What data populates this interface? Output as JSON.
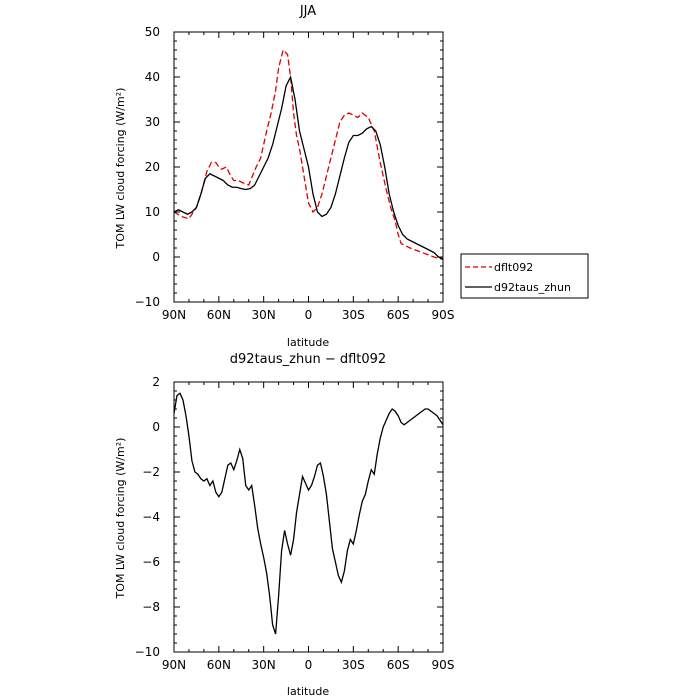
{
  "chart_data": [
    {
      "type": "line",
      "title": "JJA",
      "xlabel": "latitude",
      "ylabel": "TOM LW cloud forcing (W/m²)",
      "xlim": [
        -90,
        90
      ],
      "ylim": [
        -10,
        50
      ],
      "x_ticks": [
        -90,
        -60,
        -30,
        0,
        30,
        60,
        90
      ],
      "x_tick_labels": [
        "90N",
        "60N",
        "30N",
        "0",
        "30S",
        "60S",
        "90S"
      ],
      "y_ticks": [
        -10,
        0,
        10,
        20,
        30,
        40,
        50
      ],
      "y_tick_labels": [
        "−10",
        "0",
        "10",
        "20",
        "30",
        "40",
        "50"
      ],
      "legend": {
        "placement": "right",
        "entries": [
          "dflt092",
          "d92taus_zhun"
        ]
      },
      "series": [
        {
          "name": "dflt092",
          "color": "#dd0000",
          "dash": "dashed",
          "x": [
            -90,
            -85,
            -80,
            -75,
            -72,
            -68,
            -65,
            -62,
            -60,
            -58,
            -55,
            -52,
            -50,
            -47,
            -44,
            -40,
            -35,
            -32,
            -28,
            -25,
            -22,
            -20,
            -17,
            -14,
            -12,
            -10,
            -8,
            -6,
            -4,
            -2,
            0,
            3,
            6,
            9,
            12,
            15,
            18,
            21,
            24,
            27,
            30,
            33,
            36,
            40,
            44,
            48,
            52,
            55,
            58,
            60,
            62,
            65,
            68,
            72,
            76,
            80,
            84,
            87,
            90
          ],
          "y": [
            10,
            9,
            8.5,
            11,
            14,
            19,
            21,
            21,
            20,
            19.5,
            20,
            18,
            17,
            17,
            16.5,
            16,
            20,
            22,
            28,
            32,
            37,
            42,
            46,
            45,
            40,
            32,
            27,
            24,
            20,
            16,
            12,
            10,
            11,
            14,
            18,
            22,
            26,
            30,
            31.5,
            32,
            31.5,
            31,
            32,
            31,
            28,
            21,
            15,
            11,
            8,
            5,
            3,
            2.5,
            2,
            1.5,
            1,
            0.5,
            0,
            -0.3,
            -0.5
          ]
        },
        {
          "name": "d92taus_zhun",
          "color": "#000000",
          "dash": "solid",
          "x": [
            -90,
            -87,
            -84,
            -81,
            -78,
            -75,
            -72,
            -69,
            -66,
            -63,
            -60,
            -57,
            -54,
            -51,
            -48,
            -45,
            -42,
            -39,
            -36,
            -33,
            -30,
            -27,
            -24,
            -21,
            -18,
            -15,
            -12,
            -9,
            -6,
            -3,
            0,
            3,
            6,
            9,
            12,
            15,
            18,
            21,
            24,
            27,
            30,
            33,
            36,
            39,
            42,
            45,
            48,
            51,
            54,
            57,
            60,
            63,
            66,
            69,
            72,
            75,
            78,
            81,
            84,
            87,
            90
          ],
          "y": [
            10,
            10.5,
            10,
            9.5,
            10,
            11,
            14,
            17.5,
            18.5,
            18,
            17.5,
            17,
            16,
            15.5,
            15.5,
            15.2,
            15,
            15.2,
            16,
            18,
            20,
            22,
            25,
            29,
            33,
            38,
            40,
            35,
            28,
            24,
            20,
            14,
            10,
            9,
            9.5,
            11,
            14,
            18,
            22,
            25.5,
            27,
            27,
            27.5,
            28.5,
            29,
            28,
            25,
            20,
            14,
            10,
            7,
            5,
            4,
            3.5,
            3,
            2.5,
            2,
            1.5,
            1,
            0,
            -0.5
          ]
        }
      ]
    },
    {
      "type": "line",
      "title": "d92taus_zhun − dflt092",
      "xlabel": "latitude",
      "ylabel": "TOM LW cloud forcing (W/m²)",
      "xlim": [
        -90,
        90
      ],
      "ylim": [
        -10,
        2
      ],
      "x_ticks": [
        -90,
        -60,
        -30,
        0,
        30,
        60,
        90
      ],
      "x_tick_labels": [
        "90N",
        "60N",
        "30N",
        "0",
        "30S",
        "60S",
        "90S"
      ],
      "y_ticks": [
        -10,
        -8,
        -6,
        -4,
        -2,
        0,
        2
      ],
      "y_tick_labels": [
        "−10",
        "−8",
        "−6",
        "−4",
        "−2",
        "0",
        "2"
      ],
      "series": [
        {
          "name": "",
          "color": "#000000",
          "dash": "solid",
          "x": [
            -90,
            -88,
            -86,
            -84,
            -82,
            -80,
            -78,
            -76,
            -74,
            -72,
            -70,
            -68,
            -66,
            -64,
            -62,
            -60,
            -58,
            -56,
            -54,
            -52,
            -50,
            -48,
            -46,
            -44,
            -42,
            -40,
            -38,
            -36,
            -34,
            -32,
            -30,
            -28,
            -26,
            -24,
            -22,
            -20,
            -18,
            -16,
            -14,
            -12,
            -10,
            -8,
            -6,
            -4,
            -2,
            0,
            2,
            4,
            6,
            8,
            10,
            12,
            14,
            16,
            18,
            20,
            22,
            24,
            26,
            28,
            30,
            32,
            34,
            36,
            38,
            40,
            42,
            44,
            46,
            48,
            50,
            52,
            54,
            56,
            58,
            60,
            62,
            64,
            66,
            68,
            70,
            72,
            74,
            76,
            78,
            80,
            82,
            84,
            86,
            88,
            90
          ],
          "y": [
            0.6,
            1.4,
            1.5,
            1.2,
            0.5,
            -0.4,
            -1.5,
            -2,
            -2.1,
            -2.3,
            -2.4,
            -2.3,
            -2.6,
            -2.4,
            -2.9,
            -3.1,
            -2.9,
            -2.3,
            -1.7,
            -1.6,
            -1.9,
            -1.5,
            -1.0,
            -1.4,
            -2.6,
            -2.8,
            -2.6,
            -3.5,
            -4.5,
            -5.2,
            -5.8,
            -6.5,
            -7.5,
            -8.8,
            -9.2,
            -7.5,
            -5.5,
            -4.6,
            -5.2,
            -5.7,
            -5.0,
            -3.8,
            -3.0,
            -2.2,
            -2.5,
            -2.8,
            -2.6,
            -2.2,
            -1.7,
            -1.6,
            -2.2,
            -3.0,
            -4.2,
            -5.4,
            -6.0,
            -6.6,
            -6.9,
            -6.4,
            -5.5,
            -5.0,
            -5.2,
            -4.6,
            -3.9,
            -3.3,
            -3.0,
            -2.4,
            -1.9,
            -2.1,
            -1.2,
            -0.5,
            0.0,
            0.3,
            0.6,
            0.8,
            0.7,
            0.5,
            0.2,
            0.1,
            0.2,
            0.3,
            0.4,
            0.5,
            0.6,
            0.7,
            0.8,
            0.8,
            0.7,
            0.6,
            0.5,
            0.3,
            0.1
          ]
        }
      ]
    }
  ]
}
